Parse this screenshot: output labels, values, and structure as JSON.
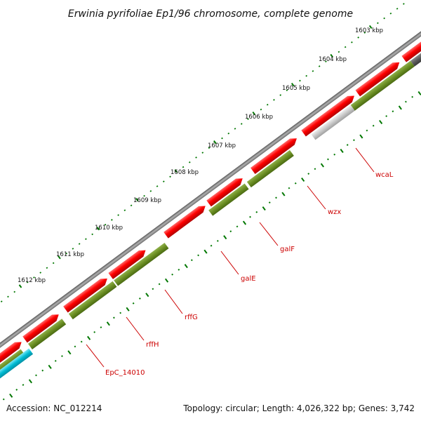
{
  "title": "Erwinia pyrifoliae Ep1/96 chromosome, complete genome",
  "footer": {
    "accession": "Accession: NC_012214",
    "summary": "Topology: circular; Length: 4,026,322 bp; Genes: 3,742"
  },
  "ruler": {
    "unit": "kbp",
    "labels": [
      "1603 kbp",
      "1604 kbp",
      "1605 kbp",
      "1606 kbp",
      "1607 kbp",
      "1608 kbp",
      "1609 kbp",
      "1610 kbp",
      "1611 kbp",
      "1612 kbp"
    ]
  },
  "gene_labels": [
    "wcaL",
    "wzx",
    "galF",
    "galE",
    "rffG",
    "rffH",
    "EpC_14010"
  ],
  "colors": {
    "backbone": "#808080",
    "forward_cds": "#ff0000",
    "reverse_cds": "#6b8e23",
    "label": "#cc0000",
    "tick": "#007700",
    "cyan_feature": "#00bcd4",
    "gray_feature": "#555555",
    "light_gray_feature": "#c8c8c8"
  }
}
